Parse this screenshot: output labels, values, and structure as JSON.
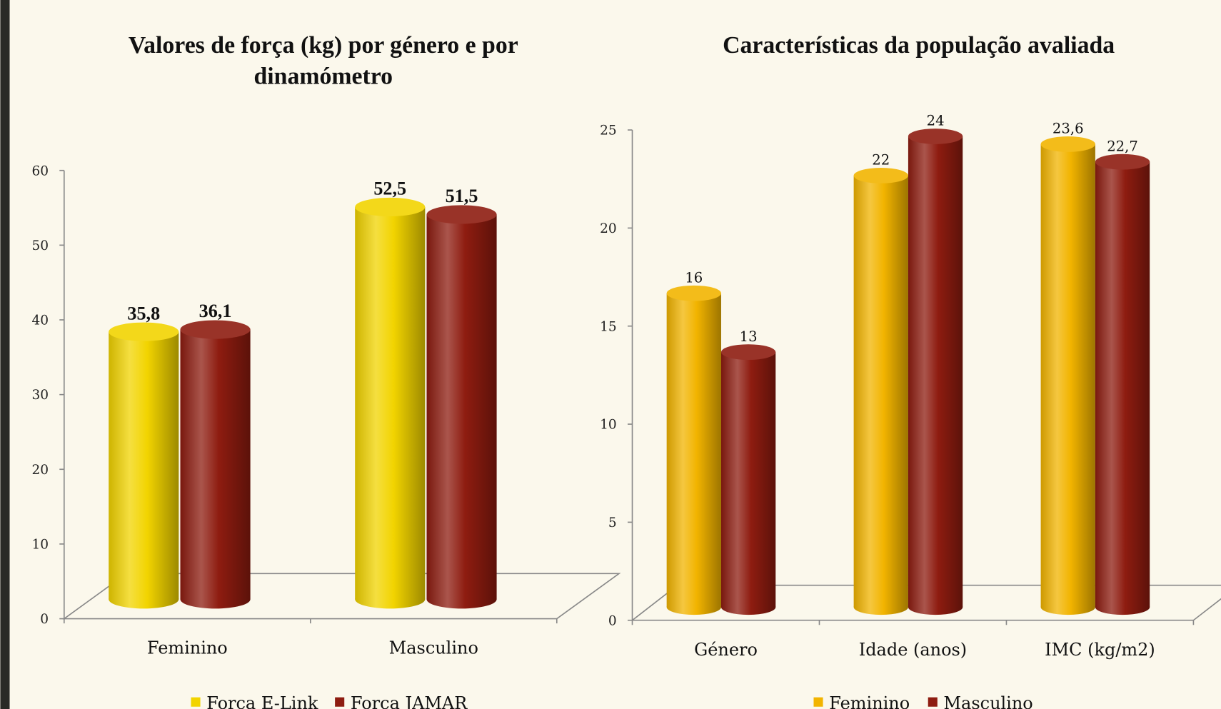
{
  "chart_data": [
    {
      "type": "bar3d",
      "title": "Valores de força (kg) por género e por dinamómetro",
      "categories": [
        "Feminino",
        "Masculino"
      ],
      "series": [
        {
          "name": "Força E-Link",
          "color": "#f2d400",
          "values": [
            35.8,
            52.5
          ],
          "value_labels": [
            "35,8",
            "52,5"
          ]
        },
        {
          "name": "Força JAMAR",
          "color": "#8e1c10",
          "values": [
            36.1,
            51.5
          ],
          "value_labels": [
            "36,1",
            "51,5"
          ]
        }
      ],
      "ylim": [
        0,
        60
      ],
      "yticks": [
        0,
        10,
        20,
        30,
        40,
        50,
        60
      ]
    },
    {
      "type": "bar3d",
      "title": "Características da população avaliada",
      "categories": [
        "Género",
        "Idade (anos)",
        "IMC (kg/m2)"
      ],
      "series": [
        {
          "name": "Feminino",
          "color": "#f2b400",
          "values": [
            16,
            22,
            23.6
          ],
          "value_labels": [
            "16",
            "22",
            "23,6"
          ]
        },
        {
          "name": "Masculino",
          "color": "#8e1c10",
          "values": [
            13,
            24,
            22.7
          ],
          "value_labels": [
            "13",
            "24",
            "22,7"
          ]
        }
      ],
      "ylim": [
        0,
        25
      ],
      "yticks": [
        0,
        5,
        10,
        15,
        20,
        25
      ]
    }
  ]
}
